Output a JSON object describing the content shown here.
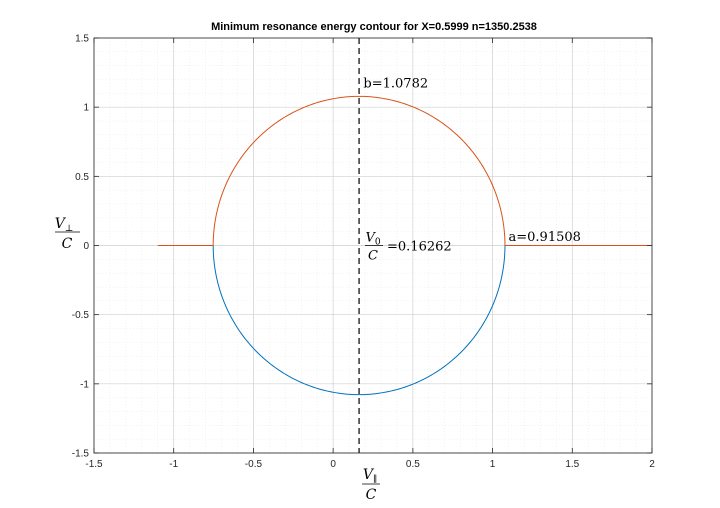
{
  "chart_data": {
    "type": "line",
    "title": "Minimum resonance energy contour for X=0.5999 n=1350.2538",
    "xlabel": {
      "numerator": "V",
      "numerator_sub": "∥",
      "denominator": "C"
    },
    "ylabel": {
      "numerator": "V",
      "numerator_sub": "⊥",
      "denominator": "C"
    },
    "xlim": [
      -1.5,
      2
    ],
    "ylim": [
      -1.5,
      1.5
    ],
    "x_ticks": [
      -1.5,
      -1,
      -0.5,
      0,
      0.5,
      1,
      1.5,
      2
    ],
    "x_tick_labels": [
      "-1.5",
      "-1",
      "-0.5",
      "0",
      "0.5",
      "1",
      "1.5",
      "2"
    ],
    "y_ticks": [
      -1.5,
      -1,
      -0.5,
      0,
      0.5,
      1,
      1.5
    ],
    "y_tick_labels": [
      "-1.5",
      "-1",
      "-0.5",
      "0",
      "0.5",
      "1",
      "1.5"
    ],
    "grid": true,
    "minor_grid": true,
    "ellipse": {
      "center_x": 0.16262,
      "semi_axis_x": 0.91508,
      "semi_axis_y": 1.0782
    },
    "series": [
      {
        "color": "#D95319",
        "part": "upper-half",
        "line_left_x": [
          -1.1,
          -0.75246
        ],
        "line_right_x": [
          1.0777,
          2
        ]
      },
      {
        "color": "#0072BD",
        "part": "lower-half"
      }
    ],
    "center_line": {
      "x": 0.16262,
      "style": "dashed",
      "color": "#000000"
    },
    "annotations": {
      "b": {
        "text": "b=1.0782",
        "x": 0.19,
        "y": 1.07
      },
      "a": {
        "text": "a=0.91508",
        "x": 1.1,
        "y": 0.07
      },
      "v0": {
        "numerator": "V",
        "numerator_sub": "0",
        "denominator": "C",
        "value_text": "=0.16262",
        "x": 0.2,
        "y": 0.0
      }
    }
  }
}
